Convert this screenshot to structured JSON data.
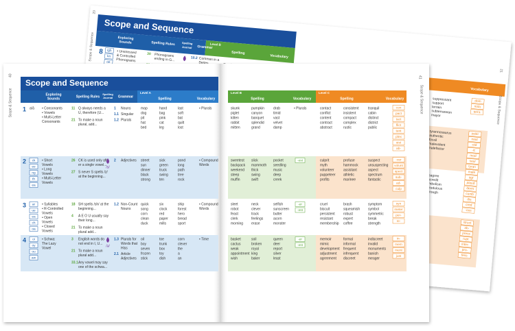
{
  "back_page": {
    "page_number": "20",
    "side_title": "Scope & Sequence",
    "title": "Scope and Sequence",
    "headers": {
      "sounds": [
        "Exploring",
        "Sounds"
      ],
      "rules": [
        "Spelling Rules"
      ],
      "journal": [
        "Spelling",
        "Journal"
      ],
      "grammar": [
        "Grammar"
      ],
      "level": "Level B",
      "spelling": "Spelling",
      "vocabulary": "Vocabulary"
    },
    "row": {
      "number": "8",
      "tiles": [
        "igh",
        "kn",
        "oe"
      ],
      "sounds": [
        "• Unstressed",
        "& Controlled",
        "Phonograms"
      ],
      "rules": [
        {
          "num": "30",
          "lines": [
            "Phonograms",
            "ending in G..."
          ]
        },
        {
          "num": "33.1",
          "lines": [
            "All and OA..."
          ]
        }
      ],
      "grammar": [
        {
          "num": "10.2",
          "lines": [
            "Commas in a",
            "Series"
          ]
        }
      ],
      "words": [
        "Email"
      ]
    }
  },
  "back_right_page": {
    "page_number": "21",
    "side_title": "Scope & Sequence",
    "headers": {
      "level_b": "Level B",
      "level_c": "Level C",
      "vocabulary": "Vocabulary"
    },
    "rows": [
      {
        "words": [
          "suppressant",
          "support",
          "terrain",
          "subterranean",
          "mayor"
        ],
        "tiles": [
          "dom",
          "nota",
          "terra"
        ]
      },
      {
        "words": [
          "tyrannosaurus",
          "authentic",
          "fossil",
          "malevolent",
          "malefactor"
        ],
        "tiles": [
          "aster",
          "naut",
          "-oid",
          "-ic",
          "mod",
          "saur",
          "tyran",
          "male"
        ]
      },
      {
        "words": [
          "disagree",
          "discredit",
          "symbolism",
          "incredulous",
          "thorough"
        ],
        "tiles": [
          "agr",
          "plaud",
          "derm",
          "cumb",
          "dis",
          "cred",
          "-ous"
        ]
      },
      {
        "tiles": [
          "struct",
          "ab-",
          "press",
          "rupt",
          "inter-",
          "pro-",
          "fess"
        ]
      }
    ]
  },
  "left_page": {
    "page_number": "40",
    "side_title": "Scope & Sequence",
    "title": "Scope and Sequence",
    "headers": {
      "sounds": [
        "Exploring",
        "Sounds"
      ],
      "rules": [
        "Spelling Rules"
      ],
      "journal": [
        "Spelling",
        "Journal"
      ],
      "grammar": [
        "Grammar"
      ],
      "level": "Level A",
      "spelling": "Spelling",
      "vocabulary": "Vocabulary"
    },
    "rows": [
      {
        "number": "1",
        "note": "a/ā",
        "sounds": [
          "• Consonants",
          "• Vowels",
          "• Multi-Letter",
          "Consonants"
        ],
        "rules": [
          {
            "num": "11",
            "lines": [
              "Q always needs a",
              "U, therefore (U..."
            ]
          },
          {
            "num": "21",
            "lines": [
              "To make a noun",
              "plural, add..."
            ]
          }
        ],
        "grammar": [
          {
            "num": "1",
            "lines": [
              "Nouns"
            ]
          },
          {
            "num": "1.1",
            "lines": [
              "Singular"
            ]
          },
          {
            "num": "1.2",
            "lines": [
              "Plurals"
            ]
          }
        ],
        "words": [
          [
            "map",
            "dog",
            "pit",
            "hat",
            "bed"
          ],
          [
            "hand",
            "bag",
            "pink",
            "cat",
            "leg"
          ],
          [
            "last",
            "soft",
            "bat",
            "quilt",
            "lost"
          ]
        ],
        "vocabulary": [
          "• Plurals"
        ]
      },
      {
        "number": "2",
        "tiles": [
          "ck",
          "ee",
          "ng",
          "th",
          "ea"
        ],
        "sounds": [
          "• Short",
          "Vowels",
          "• Long",
          "Vowels",
          "• Multi-Letter",
          "Vowels"
        ],
        "rules": [
          {
            "num": "26",
            "lines": [
              "CK is used only aft-",
              "er a single vowel..."
            ]
          },
          {
            "num": "27",
            "lines": [
              "S never S spells /z/",
              "at the beginning..."
            ]
          }
        ],
        "journal": "/s/",
        "grammar": [
          {
            "num": "2",
            "lines": [
              "Adjectives"
            ]
          }
        ],
        "words": [
          [
            "street",
            "sun",
            "dinner",
            "black",
            "strong"
          ],
          [
            "sick",
            "green",
            "truck",
            "swing",
            "ten"
          ],
          [
            "pond",
            "long",
            "path",
            "tree",
            "rock"
          ]
        ],
        "vocabulary": [
          "• Compound",
          "Words"
        ]
      },
      {
        "number": "3",
        "tiles": [
          "ar",
          "ue",
          "ea",
          "ch",
          "oa"
        ],
        "sounds": [
          "• Syllables",
          "• R-Controlled",
          "Vowels",
          "• Open",
          "Vowels",
          "• Closed",
          "Vowels"
        ],
        "rules": [
          {
            "num": "18",
            "lines": [
              "SH spells /sh/ at the",
              "beginning..."
            ]
          },
          {
            "num": "4",
            "lines": [
              "A E O U usually say",
              "their long..."
            ]
          },
          {
            "num": "21",
            "lines": [
              "To make a noun",
              "plural add..."
            ]
          }
        ],
        "grammar": [
          {
            "num": "1.2",
            "lines": [
              "Non-Count",
              "Nouns"
            ]
          }
        ],
        "words": [
          [
            "quick",
            "song",
            "corn",
            "clean",
            "duck"
          ],
          [
            "six",
            "clock",
            "red",
            "paper",
            "mills"
          ],
          [
            "ship",
            "forest",
            "hero",
            "bread",
            "sport"
          ]
        ],
        "vocabulary": [
          "• Compound",
          "Words"
        ]
      },
      {
        "number": "4",
        "tiles": [
          "oi",
          "oy",
          "ou",
          "aw"
        ],
        "sounds": [
          "• Schwa:",
          "The Lazy",
          "Vowel"
        ],
        "rules": [
          {
            "num": "3",
            "lines": [
              "English words do",
              "not end in I, U..."
            ]
          },
          {
            "num": "21",
            "lines": [
              "To make a noun",
              "plural add..."
            ]
          },
          {
            "num": "33.1",
            "lines": [
              "Any vowel may say",
              "one of the schwa..."
            ]
          }
        ],
        "journal": "/ə/",
        "grammar": [
          {
            "num": "1.3",
            "lines": [
              "Plurals for",
              "Words that",
              "Hiss"
            ]
          },
          {
            "num": "2.1",
            "lines": [
              "Article",
              "Adjectives"
            ]
          }
        ],
        "words": [
          [
            "oil",
            "boy",
            "seven",
            "frozen",
            "stick"
          ],
          [
            "toe",
            "trunk",
            "box",
            "toy",
            "dish"
          ],
          [
            "corn",
            "clever",
            "the",
            "a",
            "an"
          ]
        ],
        "vocabulary": [
          "• Time"
        ]
      }
    ]
  },
  "right_page": {
    "page_number": "41",
    "side_title": "Scope & Sequence",
    "level_b": {
      "level": "Level B",
      "spelling": "Spelling",
      "vocabulary": "Vocabulary"
    },
    "level_c": {
      "level": "Level C",
      "spelling": "Spelling",
      "vocabulary": "Vocabulary"
    },
    "rows": [
      {
        "b_words": [
          [
            "skunk",
            "piglet",
            "kitten",
            "rabbit",
            "mitten"
          ],
          [
            "pumpkin",
            "canyon",
            "banquet",
            "splendid",
            "grand"
          ],
          [
            "drab",
            "timid",
            "vast",
            "velvet",
            "damp"
          ]
        ],
        "b_vocabulary": [
          "• Plurals"
        ],
        "c_words": [
          [
            "contact",
            "conflict",
            "content",
            "contract",
            "abstract"
          ],
          [
            "consistent",
            "insistent",
            "compact",
            "complex",
            "rustic"
          ],
          [
            "tranquil",
            "cabin",
            "distinct",
            "district",
            "public"
          ]
        ],
        "tiles": [
          "con",
          "pact",
          "tact",
          "flict",
          "tent",
          "plex",
          "sist",
          "ab-"
        ]
      },
      {
        "b_words": [
          [
            "sweetest",
            "backpack",
            "weekend",
            "steep",
            "muffin"
          ],
          [
            "slick",
            "mammoth",
            "thick",
            "swing",
            "swift"
          ],
          [
            "pocket",
            "seedling",
            "music",
            "deep",
            "creek"
          ]
        ],
        "b_suffixes": [
          "-est"
        ],
        "c_words": [
          [
            "culprit",
            "myth",
            "volunteer",
            "puppeteer",
            "profits"
          ],
          [
            "profuse",
            "hammock",
            "assistant",
            "athletic",
            "marinee"
          ],
          [
            "suspect",
            "unsuspecting",
            "aspect",
            "spectrum",
            "fantastic"
          ]
        ],
        "tiles": [
          "-ver",
          "volunt",
          "spect",
          "sub-",
          "ad-",
          "culp"
        ]
      },
      {
        "b_words": [
          [
            "sleet",
            "robot",
            "feast",
            "clerk",
            "morning"
          ],
          [
            "neck",
            "clever",
            "track",
            "feelings",
            "erase"
          ],
          [
            "selfish",
            "sunscreen",
            "butter",
            "acorn",
            "monster"
          ]
        ],
        "b_suffixes": [
          "-er",
          "-est"
        ],
        "c_words": [
          [
            "cruel",
            "biscuit",
            "persistent",
            "resistant",
            "membership"
          ],
          [
            "brash",
            "squeamish",
            "robust",
            "expert",
            "coffee"
          ],
          [
            "symptom",
            "symbol",
            "symmetric",
            "break",
            "strength"
          ]
        ],
        "tiles": [
          "syn",
          "meter",
          "per-",
          "re-"
        ]
      },
      {
        "b_words": [
          [
            "basket",
            "cactus",
            "weak",
            "appointment",
            "wish"
          ],
          [
            "soil",
            "broken",
            "royal",
            "king",
            "baker"
          ],
          [
            "queen",
            "deer",
            "report",
            "silver",
            "least"
          ]
        ],
        "b_suffixes": [
          "-er",
          "-est"
        ],
        "c_words": [
          [
            "memoir",
            "mimic",
            "development",
            "adjustment",
            "agreement"
          ],
          [
            "formal",
            "informal",
            "frequent",
            "infrequent",
            "discreet"
          ],
          [
            "indiscreet",
            "invalid",
            "monuments",
            "banish",
            "meager"
          ]
        ],
        "tiles": [
          "in-",
          "mem",
          "ment",
          "just"
        ]
      }
    ]
  }
}
